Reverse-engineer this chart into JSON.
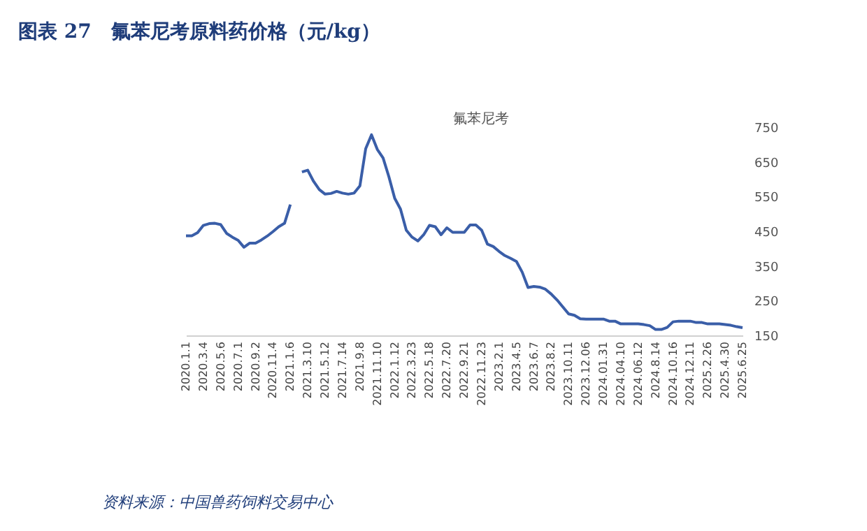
{
  "chart_data": {
    "type": "line",
    "title": "图表 27　氟苯尼考原料药价格（元/kg）",
    "subtitle": "氟苯尼考",
    "annotations": [
      "资料来源：中国兽药饲料交易中心"
    ],
    "categories": [
      "2020.1.1",
      null,
      null,
      "2020.3.4",
      null,
      null,
      "2020.5.6",
      null,
      null,
      "2020.7.1",
      null,
      null,
      "2020.9.2",
      null,
      null,
      "2020.11.4",
      null,
      null,
      "2021.1.6",
      null,
      null,
      "2021.3.10",
      null,
      null,
      "2021.5.12",
      null,
      null,
      "2021.7.14",
      null,
      null,
      "2021.9.8",
      null,
      null,
      "2021.11.10",
      null,
      null,
      "2022.1.12",
      null,
      null,
      "2022.3.23",
      null,
      null,
      "2022.5.18",
      null,
      null,
      "2022.7.20",
      null,
      null,
      "2022.9.21",
      null,
      null,
      "2022.11.23",
      null,
      null,
      "2023.2.1",
      null,
      null,
      "2023.4.5",
      null,
      null,
      "2023.6.7",
      null,
      null,
      "2023.8.2",
      null,
      null,
      "2023.10.11",
      null,
      null,
      "2023.12.06",
      null,
      null,
      "2024.01.31",
      null,
      null,
      "2024.04.10",
      null,
      null,
      "2024.06.12",
      null,
      null,
      "2024.8.14",
      null,
      null,
      "2024.10.16",
      null,
      null,
      "2024.12.11",
      null,
      null,
      "2025.2.26",
      null,
      null,
      "2025.4.30",
      null,
      null,
      "2025.6.25"
    ],
    "series": [
      {
        "color": "#3a5ea8",
        "values": [
          437,
          437,
          446,
          467,
          472,
          473,
          469,
          444,
          433,
          424,
          404,
          416,
          416,
          425,
          436,
          449,
          463,
          473,
          527,
          null,
          621,
          626,
          594,
          570,
          557,
          559,
          565,
          560,
          557,
          560,
          581,
          688,
          728,
          686,
          661,
          607,
          545,
          514,
          453,
          433,
          422,
          440,
          467,
          463,
          440,
          460,
          447,
          447,
          447,
          468,
          468,
          453,
          413,
          406,
          392,
          380,
          372,
          363,
          332,
          288,
          291,
          289,
          283,
          269,
          252,
          232,
          212,
          208,
          198,
          197,
          197,
          197,
          197,
          191,
          191,
          183,
          183,
          183,
          183,
          181,
          178,
          167,
          167,
          173,
          189,
          191,
          191,
          191,
          187,
          187,
          183,
          183,
          183,
          181,
          179,
          175,
          172
        ]
      }
    ],
    "ylim": [
      150,
      750
    ],
    "yticks": [
      150,
      250,
      350,
      450,
      550,
      650,
      750
    ],
    "grid": false,
    "marker": "none",
    "line_style": "solid"
  }
}
